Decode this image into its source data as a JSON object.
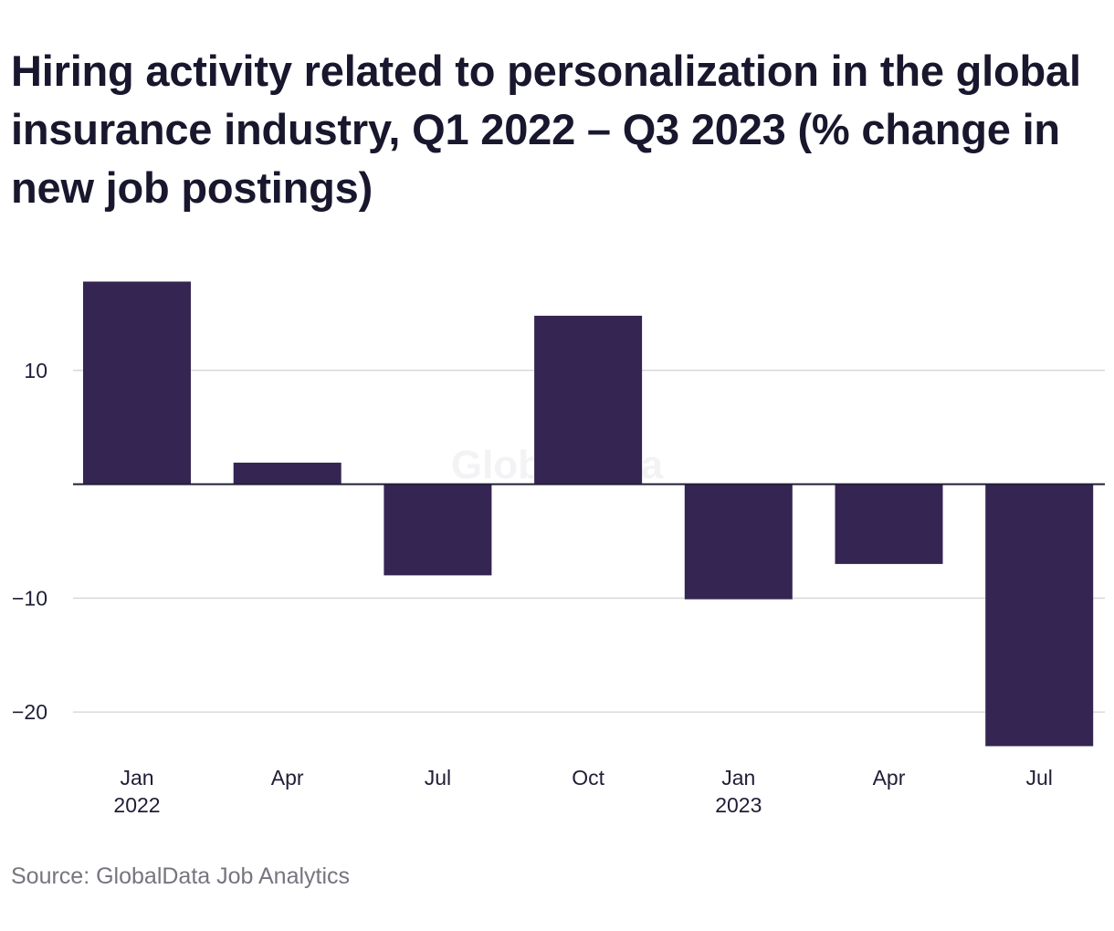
{
  "chart_data": {
    "type": "bar",
    "title": "Hiring activity related to personalization in the global insurance industry, Q1 2022 – Q3 2023 (% change in new job postings)",
    "categories": [
      "Jan 2022",
      "Apr 2022",
      "Jul 2022",
      "Oct 2022",
      "Jan 2023",
      "Apr 2023",
      "Jul 2023"
    ],
    "tick_labels": [
      {
        "line1": "Jan",
        "line2": "2022"
      },
      {
        "line1": "Apr",
        "line2": ""
      },
      {
        "line1": "Jul",
        "line2": ""
      },
      {
        "line1": "Oct",
        "line2": ""
      },
      {
        "line1": "Jan",
        "line2": "2023"
      },
      {
        "line1": "Apr",
        "line2": ""
      },
      {
        "line1": "Jul",
        "line2": ""
      }
    ],
    "values": [
      17.8,
      1.9,
      -8.0,
      14.8,
      -10.1,
      -7.0,
      -23.0
    ],
    "ylim": [
      -23.2,
      18.4
    ],
    "yticks": [
      10,
      -10,
      -20
    ],
    "ytick_labels": [
      "10",
      "−10",
      "−20"
    ],
    "xlabel": "",
    "ylabel": "",
    "grid": true,
    "legend": "none",
    "bar_color": "#352552",
    "gridline_color": "#d9d9dc",
    "zero_line_color": "#1f1e36"
  },
  "watermark": "GlobalData",
  "source": "Source: GlobalData Job Analytics"
}
